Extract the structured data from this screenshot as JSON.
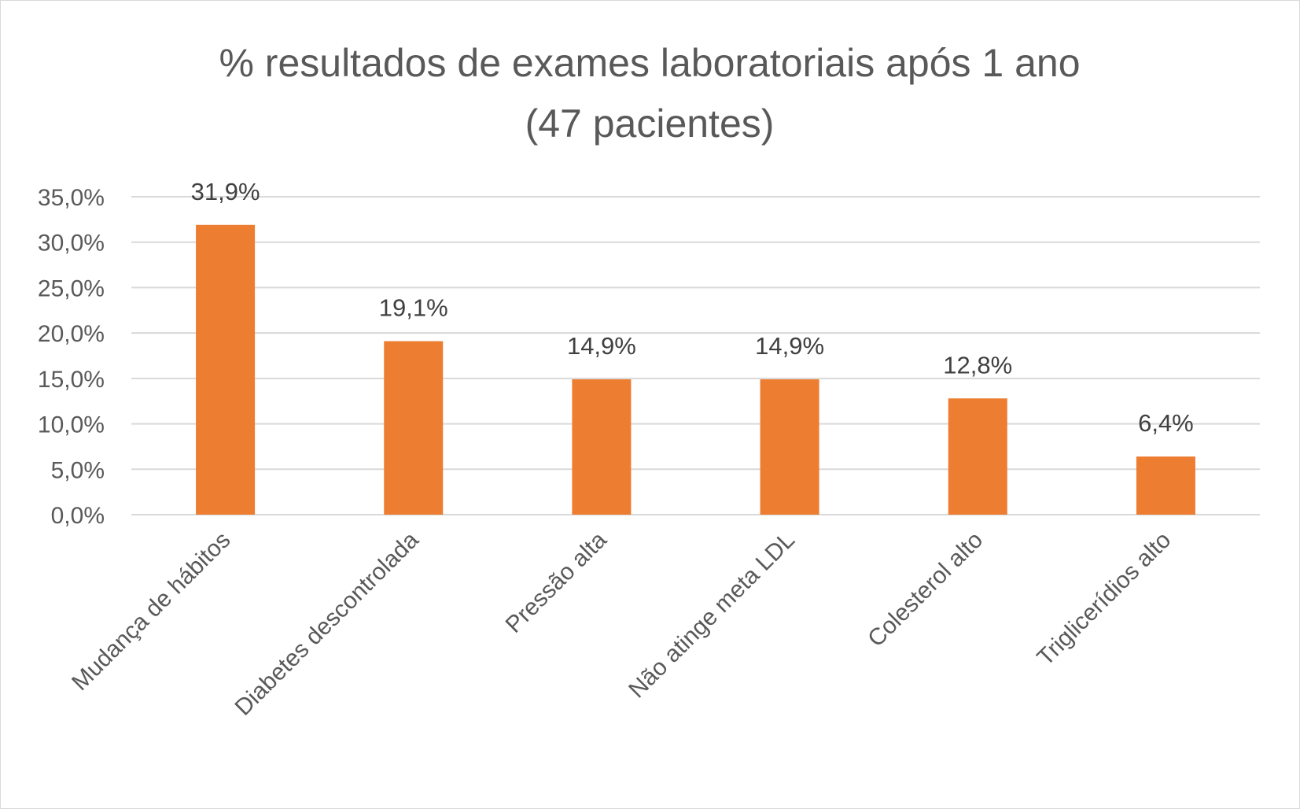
{
  "chart_data": {
    "type": "bar",
    "title": "% resultados de exames laboratoriais após 1 ano",
    "subtitle": "(47 pacientes)",
    "categories": [
      "Mudança de hábitos",
      "Diabetes descontrolada",
      "Pressão alta",
      "Não atinge meta LDL",
      "Colesterol alto",
      "Triglicerídios alto"
    ],
    "values": [
      31.9,
      19.1,
      14.9,
      14.9,
      12.8,
      6.4
    ],
    "data_labels": [
      "31,9%",
      "19,1%",
      "14,9%",
      "14,9%",
      "12,8%",
      "6,4%"
    ],
    "yticks": [
      0,
      5,
      10,
      15,
      20,
      25,
      30,
      35
    ],
    "ytick_labels": [
      "0,0%",
      "5,0%",
      "10,0%",
      "15,0%",
      "20,0%",
      "25,0%",
      "30,0%",
      "35,0%"
    ],
    "ylim": [
      0,
      35
    ],
    "xlabel": "",
    "ylabel": "",
    "grid": true,
    "legend": "none",
    "bar_color": "#ed7d31",
    "grid_color": "#d9d9d9"
  }
}
